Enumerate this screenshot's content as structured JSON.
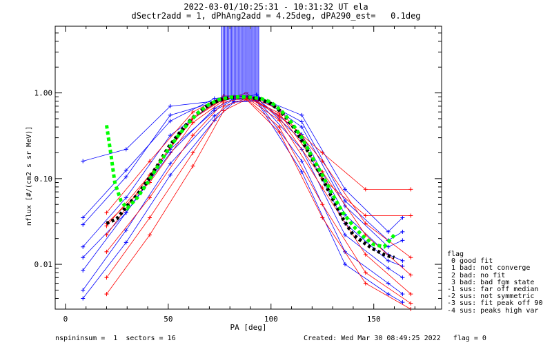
{
  "title": {
    "line1": "2022-03-01/10:25:31 - 10:31:32 UT ela",
    "line2": "dSectr2add = 1, dPhAng2add = 4.25deg, dPA290_est=   0.1deg"
  },
  "footer": {
    "left": "nspininsum =  1  sectors = 16",
    "right": "Created: Wed Mar 30 08:49:25 2022   flag = 0"
  },
  "legend": {
    "title": "flag",
    "entries": [
      " 0 good fit",
      " 1 bad: not converge",
      " 2 bad: no fit",
      " 3 bad: bad fgm state",
      "-1 sus: far off median",
      "-2 sus: not symmetric",
      "-3 sus: fit peak off 90",
      "-4 sus: peaks high var"
    ]
  },
  "colors": {
    "red": "#ff0000",
    "blue": "#0000ff",
    "green": "#00ff00",
    "black": "#000000"
  },
  "chart_data": {
    "type": "line",
    "xlabel": "PA [deg]",
    "ylabel": "nflux [#/(cm2 s sr MeV)]",
    "xlim": [
      -5,
      183
    ],
    "ylim": [
      0.003,
      6
    ],
    "yscale": "log",
    "xticks": [
      0,
      50,
      100,
      150
    ],
    "yticks": [
      0.01,
      0.1,
      1.0
    ],
    "ytick_labels": [
      "0.01",
      "0.10",
      "1.00"
    ],
    "series": [
      {
        "color": "blue",
        "x": [
          8.5,
          29.5,
          51,
          72.5,
          82,
          93,
          115,
          136,
          157,
          164
        ],
        "y": [
          0.029,
          0.105,
          0.55,
          0.78,
          0.9,
          0.88,
          0.46,
          0.055,
          0.019,
          0.024
        ]
      },
      {
        "color": "blue",
        "x": [
          8.5,
          29.5,
          51,
          72.5,
          82,
          93,
          115,
          136,
          157,
          164
        ],
        "y": [
          0.016,
          0.06,
          0.32,
          0.76,
          0.87,
          0.86,
          0.33,
          0.038,
          0.013,
          0.011
        ]
      },
      {
        "color": "blue",
        "x": [
          8.5,
          29.5,
          51,
          72.5,
          82,
          93,
          115,
          136,
          157,
          164
        ],
        "y": [
          0.0085,
          0.04,
          0.22,
          0.62,
          0.84,
          0.84,
          0.22,
          0.022,
          0.009,
          0.007
        ]
      },
      {
        "color": "blue",
        "x": [
          8.5,
          29.5,
          51,
          72.5,
          82,
          93,
          115,
          136,
          157,
          164
        ],
        "y": [
          0.005,
          0.025,
          0.15,
          0.54,
          0.8,
          0.82,
          0.16,
          0.014,
          0.006,
          0.0045
        ]
      },
      {
        "color": "blue",
        "x": [
          8.5,
          29.5,
          51,
          72.5,
          82,
          93,
          115,
          136,
          157,
          164
        ],
        "y": [
          0.035,
          0.125,
          0.47,
          0.86,
          0.92,
          0.9,
          0.55,
          0.075,
          0.024,
          0.035
        ]
      },
      {
        "color": "blue",
        "x": [
          8.5,
          29.5,
          51,
          72.5,
          82,
          93,
          115,
          136,
          157,
          164
        ],
        "y": [
          0.16,
          0.22,
          0.7,
          0.8,
          0.88,
          0.95,
          0.4,
          0.048,
          0.016,
          0.019
        ]
      },
      {
        "color": "blue",
        "x": [
          8.5,
          29.5,
          51,
          72.5,
          82,
          93,
          115,
          136,
          157,
          164
        ],
        "y": [
          0.004,
          0.018,
          0.11,
          0.48,
          0.78,
          0.8,
          0.12,
          0.01,
          0.0045,
          0.0036
        ]
      },
      {
        "color": "blue",
        "x": [
          8.5,
          29.5,
          51,
          72.5,
          82,
          93,
          115,
          136,
          157,
          164
        ],
        "y": [
          0.012,
          0.04,
          0.2,
          0.66,
          0.86,
          0.87,
          0.28,
          0.03,
          0.011,
          0.0095
        ]
      },
      {
        "color": "red",
        "x": [
          20,
          41,
          62,
          77,
          88,
          104,
          125,
          146,
          168
        ],
        "y": [
          0.028,
          0.11,
          0.52,
          0.86,
          0.9,
          0.58,
          0.12,
          0.022,
          0.0075
        ]
      },
      {
        "color": "red",
        "x": [
          20,
          41,
          62,
          77,
          88,
          104,
          125,
          146,
          168
        ],
        "y": [
          0.014,
          0.06,
          0.32,
          0.78,
          0.88,
          0.48,
          0.078,
          0.013,
          0.0045
        ]
      },
      {
        "color": "red",
        "x": [
          20,
          41,
          62,
          77,
          88,
          104,
          125,
          146,
          168
        ],
        "y": [
          0.007,
          0.035,
          0.2,
          0.7,
          0.86,
          0.4,
          0.05,
          0.008,
          0.0035
        ]
      },
      {
        "color": "red",
        "x": [
          20,
          41,
          62,
          77,
          88,
          104,
          125,
          146,
          168
        ],
        "y": [
          0.04,
          0.16,
          0.6,
          0.92,
          0.94,
          0.64,
          0.16,
          0.03,
          0.012
        ]
      },
      {
        "color": "red",
        "x": [
          20,
          41,
          62,
          77,
          88,
          104,
          125,
          146,
          168
        ],
        "y": [
          0.022,
          0.11,
          0.5,
          0.85,
          0.9,
          0.55,
          0.2,
          0.075,
          0.075
        ]
      },
      {
        "color": "red",
        "x": [
          20,
          41,
          62,
          77,
          88,
          104,
          125,
          146,
          168
        ],
        "y": [
          0.0045,
          0.022,
          0.14,
          0.62,
          0.84,
          0.35,
          0.035,
          0.006,
          0.003
        ]
      },
      {
        "color": "red",
        "x": [
          20,
          41,
          62,
          77,
          88,
          104,
          125,
          146,
          168
        ],
        "y": [
          0.03,
          0.09,
          0.45,
          0.82,
          1.0,
          0.52,
          0.1,
          0.037,
          0.037
        ]
      }
    ],
    "median_fit": {
      "color": "green",
      "x": [
        20,
        22,
        24,
        27,
        30,
        35,
        40,
        45,
        50,
        55,
        60,
        65,
        70,
        75,
        80,
        85,
        90,
        95,
        100,
        105,
        110,
        115,
        120,
        125,
        130,
        135,
        140,
        145,
        150,
        155,
        160
      ],
      "y": [
        0.42,
        0.2,
        0.09,
        0.055,
        0.045,
        0.06,
        0.09,
        0.14,
        0.22,
        0.32,
        0.45,
        0.6,
        0.74,
        0.84,
        0.89,
        0.9,
        0.89,
        0.86,
        0.78,
        0.62,
        0.45,
        0.3,
        0.18,
        0.11,
        0.065,
        0.04,
        0.028,
        0.021,
        0.017,
        0.016,
        0.022
      ]
    },
    "median_data": {
      "color": "black",
      "x": [
        20,
        25,
        30,
        35,
        40,
        45,
        50,
        55,
        60,
        65,
        70,
        75,
        80,
        85,
        90,
        95,
        100,
        105,
        110,
        115,
        120,
        125,
        130,
        135,
        140,
        145,
        150,
        155,
        160
      ],
      "y": [
        0.03,
        0.034,
        0.048,
        0.065,
        0.095,
        0.145,
        0.23,
        0.33,
        0.46,
        0.6,
        0.73,
        0.83,
        0.88,
        0.89,
        0.88,
        0.84,
        0.75,
        0.6,
        0.43,
        0.28,
        0.17,
        0.1,
        0.058,
        0.034,
        0.022,
        0.018,
        0.015,
        0.013,
        0.012
      ]
    },
    "spikes": {
      "color": "blue",
      "x_range": [
        76,
        94
      ],
      "count": 28
    }
  }
}
